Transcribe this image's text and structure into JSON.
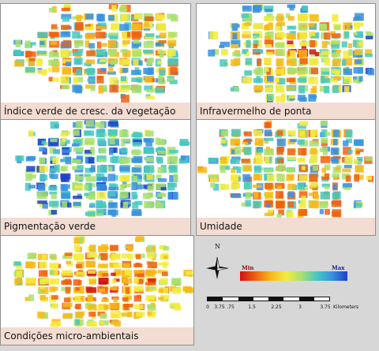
{
  "panels": [
    {
      "caption": "Índice verde de cresc. da vegetação",
      "theme": "mixed"
    },
    {
      "caption": "Infravermelho de ponta",
      "theme": "warm-center"
    },
    {
      "caption": "Pigmentação verde",
      "theme": "cool"
    },
    {
      "caption": "Umidade",
      "theme": "mixed"
    },
    {
      "caption": "Condições micro-ambientais",
      "theme": "hot"
    }
  ],
  "legend": {
    "north_label": "N",
    "min_label": "Min",
    "max_label": "Max",
    "ramp_colors": [
      "#d01010",
      "#f06010",
      "#f8b818",
      "#f4ec40",
      "#a8e070",
      "#48c8c0",
      "#3890e0",
      "#1f3fc8"
    ],
    "scale_ticks": [
      "0",
      "3.75",
      ".75",
      "1.5",
      "2.25",
      "3",
      "3.75"
    ],
    "scale_unit": "Kilometers"
  }
}
